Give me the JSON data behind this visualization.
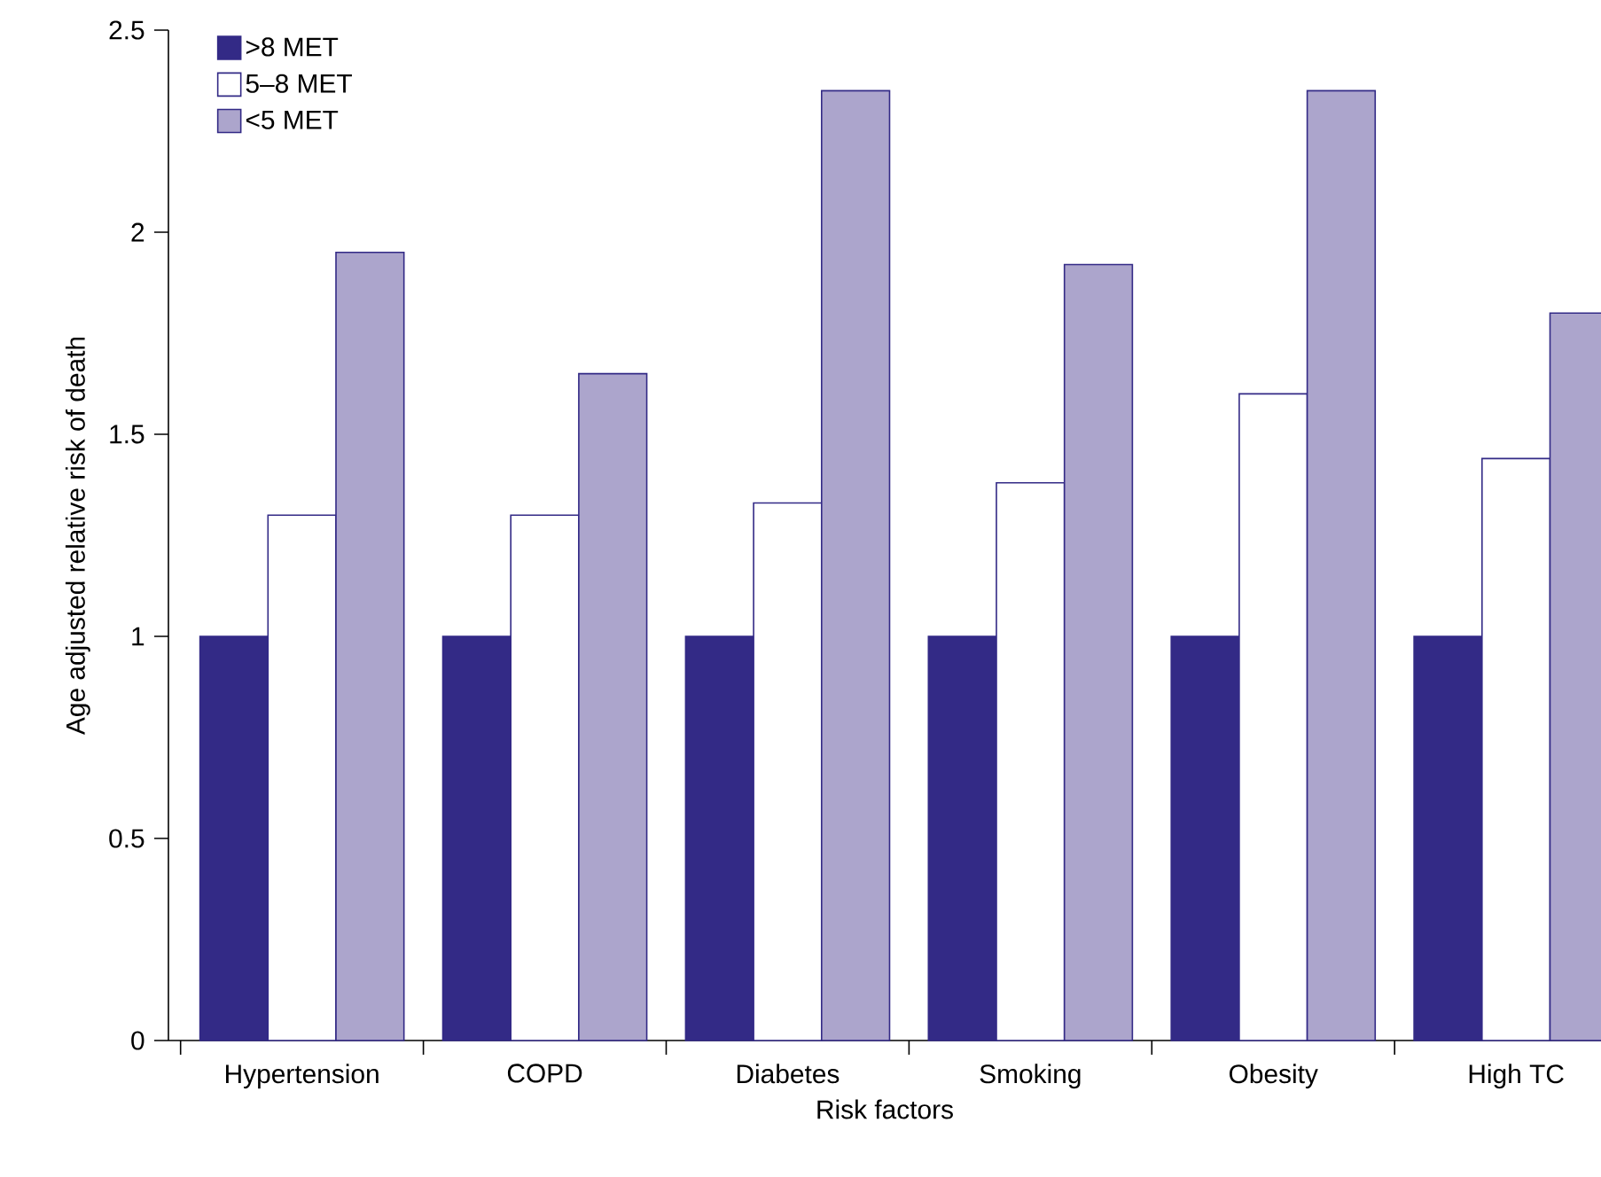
{
  "chart_data": {
    "type": "bar",
    "xlabel": "Risk factors",
    "ylabel": "Age adjusted relative risk of death",
    "categories": [
      "Hypertension",
      "COPD",
      "Diabetes",
      "Smoking",
      "Obesity",
      "High TC"
    ],
    "series": [
      {
        "name": ">8 MET",
        "color": "#332a86",
        "values": [
          1,
          1,
          1,
          1,
          1,
          1
        ]
      },
      {
        "name": "5–8 MET",
        "color": "#ffffff",
        "values": [
          1.3,
          1.3,
          1.33,
          1.38,
          1.6,
          1.44
        ]
      },
      {
        "name": "<5 MET",
        "color": "#aca5cc",
        "values": [
          1.95,
          1.65,
          2.35,
          1.92,
          2.35,
          1.8
        ]
      }
    ],
    "ylim": [
      0,
      2.5
    ],
    "yticks": [
      0,
      0.5,
      1,
      1.5,
      2,
      2.5
    ],
    "legend": "top left",
    "grid": false
  }
}
